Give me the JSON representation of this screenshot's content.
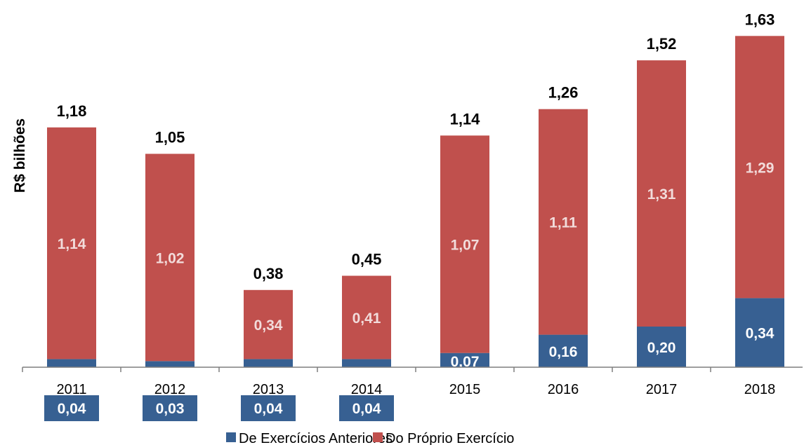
{
  "chart_data": {
    "type": "bar",
    "stacked": true,
    "ylabel": "R$ bilhões",
    "categories": [
      "2011",
      "2012",
      "2013",
      "2014",
      "2015",
      "2016",
      "2017",
      "2018"
    ],
    "series": [
      {
        "name": "De Exercícios Anteriores",
        "color": "#376092",
        "values": [
          0.04,
          0.03,
          0.04,
          0.04,
          0.07,
          0.16,
          0.2,
          0.34
        ],
        "labels": [
          "0,04",
          "0,03",
          "0,04",
          "0,04",
          "0,07",
          "0,16",
          "0,20",
          "0,34"
        ]
      },
      {
        "name": "Do Próprio Exercício",
        "color": "#c0504d",
        "values": [
          1.14,
          1.02,
          0.34,
          0.41,
          1.07,
          1.11,
          1.31,
          1.29
        ],
        "labels": [
          "1,14",
          "1,02",
          "0,34",
          "0,41",
          "1,07",
          "1,11",
          "1,31",
          "1,29"
        ]
      }
    ],
    "totals": [
      1.18,
      1.05,
      0.38,
      0.45,
      1.14,
      1.26,
      1.52,
      1.63
    ],
    "total_labels": [
      "1,18",
      "1,05",
      "0,38",
      "0,45",
      "1,14",
      "1,26",
      "1,52",
      "1,63"
    ],
    "ylim": [
      0,
      1.7
    ],
    "grid": false,
    "legend_position": "bottom"
  }
}
